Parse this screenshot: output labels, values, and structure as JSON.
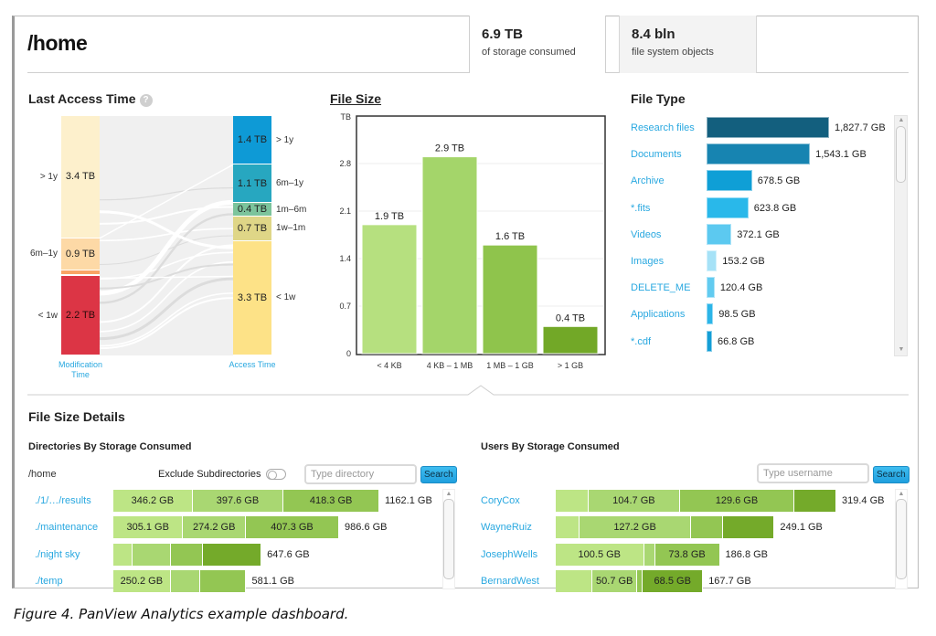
{
  "header": {
    "title": "/home",
    "stats": [
      {
        "value": "6.9 TB",
        "label": "of storage consumed",
        "active": true
      },
      {
        "value": "8.4 bln",
        "label": "file system objects",
        "active": false
      }
    ]
  },
  "last_access": {
    "title": "Last Access Time",
    "help_icon": "?",
    "left_axis_label": "Modification Time",
    "right_axis_label": "Access Time",
    "modification": [
      {
        "range": "> 1y",
        "value": "3.4 TB",
        "tb": 3.4,
        "color": "#fdf0cc"
      },
      {
        "range": "6m–1y",
        "value": "0.9 TB",
        "tb": 0.9,
        "color": "#fdd9a6"
      },
      {
        "range": "",
        "value": "",
        "tb": 0.12,
        "color": "#f9a466"
      },
      {
        "range": "",
        "value": "",
        "tb": 0.04,
        "color": "#f06a4e"
      },
      {
        "range": "< 1w",
        "value": "2.2 TB",
        "tb": 2.2,
        "color": "#dc3545"
      }
    ],
    "access": [
      {
        "range": "> 1y",
        "value": "1.4 TB",
        "tb": 1.4,
        "color": "#0e9ad6"
      },
      {
        "range": "6m–1y",
        "value": "1.1 TB",
        "tb": 1.1,
        "color": "#27a7c0"
      },
      {
        "range": "1m–6m",
        "value": "0.4 TB",
        "tb": 0.4,
        "color": "#7cc49c"
      },
      {
        "range": "1w–1m",
        "value": "0.7 TB",
        "tb": 0.7,
        "color": "#dfd687"
      },
      {
        "range": "< 1w",
        "value": "3.3 TB",
        "tb": 3.3,
        "color": "#fde287"
      }
    ]
  },
  "chart_data": {
    "type": "bar",
    "title": "File Size",
    "ylabel": "TB",
    "xlabel": "",
    "categories": [
      "< 4 KB",
      "4 KB – 1 MB",
      "1 MB – 1 GB",
      "> 1 GB"
    ],
    "values": [
      1.9,
      2.9,
      1.6,
      0.4
    ],
    "value_labels": [
      "1.9 TB",
      "2.9 TB",
      "1.6 TB",
      "0.4 TB"
    ],
    "colors": [
      "#b6e07f",
      "#a4d56a",
      "#8fc44c",
      "#72a827"
    ],
    "yticks": [
      0,
      0.7,
      1.4,
      2.1,
      2.8
    ],
    "ytick_labels": [
      "0",
      "0.7",
      "1.4",
      "2.1",
      "2.8"
    ],
    "ylim": [
      0,
      3.5
    ],
    "grid": true
  },
  "file_type": {
    "title": "File Type",
    "items": [
      {
        "label": "Research files",
        "value": "1,827.7 GB",
        "gb": 1827.7,
        "color": "#135f7e"
      },
      {
        "label": "Documents",
        "value": "1,543.1 GB",
        "gb": 1543.1,
        "color": "#1784b1"
      },
      {
        "label": "Archive",
        "value": "678.5 GB",
        "gb": 678.5,
        "color": "#0f9fd6"
      },
      {
        "label": "*.fits",
        "value": "623.8 GB",
        "gb": 623.8,
        "color": "#29b8ea"
      },
      {
        "label": "Videos",
        "value": "372.1 GB",
        "gb": 372.1,
        "color": "#5cc9f0"
      },
      {
        "label": "Images",
        "value": "153.2 GB",
        "gb": 153.2,
        "color": "#a6e2f7"
      },
      {
        "label": "DELETE_ME",
        "value": "120.4 GB",
        "gb": 120.4,
        "color": "#62cbf0"
      },
      {
        "label": "Applications",
        "value": "98.5 GB",
        "gb": 98.5,
        "color": "#2cb5e8"
      },
      {
        "label": "*.cdf",
        "value": "66.8 GB",
        "gb": 66.8,
        "color": "#149ed6"
      }
    ]
  },
  "details": {
    "title": "File Size Details",
    "segment_colors": [
      "#bde585",
      "#a9d772",
      "#93c653",
      "#74aa2a"
    ],
    "directories": {
      "title": "Directories By Storage Consumed",
      "path": "/home",
      "exclude_label": "Exclude Subdirectories",
      "exclude_on": false,
      "search_placeholder": "Type directory",
      "search_button": "Search",
      "rows": [
        {
          "label": "./1/…/results",
          "total": "1162.1 GB",
          "segments": [
            {
              "gb": 346.2,
              "label": "346.2 GB"
            },
            {
              "gb": 397.6,
              "label": "397.6 GB"
            },
            {
              "gb": 418.3,
              "label": "418.3 GB"
            },
            {
              "gb": 0,
              "label": ""
            }
          ]
        },
        {
          "label": "./maintenance",
          "total": "986.6 GB",
          "segments": [
            {
              "gb": 305.1,
              "label": "305.1 GB"
            },
            {
              "gb": 274.2,
              "label": "274.2 GB"
            },
            {
              "gb": 407.3,
              "label": "407.3 GB"
            },
            {
              "gb": 0,
              "label": ""
            }
          ]
        },
        {
          "label": "./night sky",
          "total": "647.6 GB",
          "segments": [
            {
              "gb": 85,
              "label": ""
            },
            {
              "gb": 165,
              "label": ""
            },
            {
              "gb": 140,
              "label": ""
            },
            {
              "gb": 257.6,
              "label": ""
            }
          ]
        },
        {
          "label": "./temp",
          "total": "581.1 GB",
          "segments": [
            {
              "gb": 250.2,
              "label": "250.2 GB"
            },
            {
              "gb": 130,
              "label": ""
            },
            {
              "gb": 200.9,
              "label": ""
            },
            {
              "gb": 0,
              "label": ""
            }
          ]
        }
      ]
    },
    "users": {
      "title": "Users By Storage Consumed",
      "search_placeholder": "Type username",
      "search_button": "Search",
      "rows": [
        {
          "label": "CoryCox",
          "total": "319.4 GB",
          "segments": [
            {
              "gb": 37,
              "label": ""
            },
            {
              "gb": 104.7,
              "label": "104.7 GB"
            },
            {
              "gb": 129.6,
              "label": "129.6 GB"
            },
            {
              "gb": 48.1,
              "label": ""
            }
          ]
        },
        {
          "label": "WayneRuiz",
          "total": "249.1 GB",
          "segments": [
            {
              "gb": 27,
              "label": ""
            },
            {
              "gb": 127.2,
              "label": "127.2 GB"
            },
            {
              "gb": 36,
              "label": ""
            },
            {
              "gb": 58.9,
              "label": ""
            }
          ]
        },
        {
          "label": "JosephWells",
          "total": "186.8 GB",
          "segments": [
            {
              "gb": 100.5,
              "label": "100.5 GB"
            },
            {
              "gb": 12.5,
              "label": ""
            },
            {
              "gb": 73.8,
              "label": "73.8 GB"
            },
            {
              "gb": 0,
              "label": ""
            }
          ]
        },
        {
          "label": "BernardWest",
          "total": "167.7 GB",
          "segments": [
            {
              "gb": 42,
              "label": ""
            },
            {
              "gb": 50.7,
              "label": "50.7 GB"
            },
            {
              "gb": 6.5,
              "label": ""
            },
            {
              "gb": 68.5,
              "label": "68.5 GB"
            }
          ]
        }
      ]
    }
  },
  "caption": "Figure 4. PanView Analytics example dashboard."
}
